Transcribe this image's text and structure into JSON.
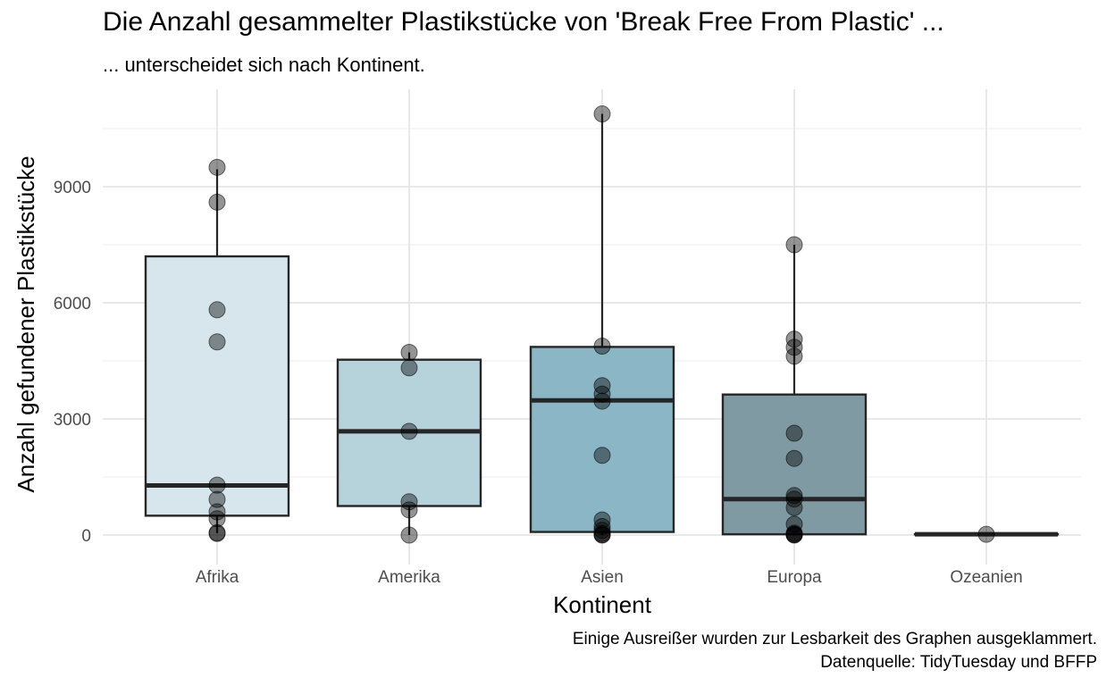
{
  "chart_data": {
    "type": "boxplot",
    "title": "Die Anzahl gesammelter Plastikstücke von 'Break Free From Plastic' ...",
    "subtitle": "... unterscheidet sich nach Kontinent.",
    "xlabel": "Kontinent",
    "ylabel": "Anzahl gefundener Plastikstücke",
    "caption": [
      "Einige Ausreißer wurden zur Lesbarkeit des Graphen ausgeklammert.",
      "Datenquelle: TidyTuesday und BFFP"
    ],
    "ylim": [
      -250,
      11250
    ],
    "yticks": [
      0,
      3000,
      6000,
      9000
    ],
    "grid": true,
    "categories": [
      "Afrika",
      "Amerika",
      "Asien",
      "Europa",
      "Ozeanien"
    ],
    "boxes": [
      {
        "category": "Afrika",
        "whisker_low": 50,
        "q1": 500,
        "median": 1280,
        "q3": 7200,
        "whisker_high": 9450,
        "color": "#d6e6ec"
      },
      {
        "category": "Amerika",
        "whisker_low": 0,
        "q1": 750,
        "median": 2680,
        "q3": 4530,
        "whisker_high": 4720,
        "color": "#b6d3dc"
      },
      {
        "category": "Asien",
        "whisker_low": 0,
        "q1": 80,
        "median": 3480,
        "q3": 4860,
        "whisker_high": 10880,
        "color": "#8ab6c6"
      },
      {
        "category": "Europa",
        "whisker_low": 0,
        "q1": 20,
        "median": 930,
        "q3": 3630,
        "whisker_high": 7500,
        "color": "#809aa3"
      },
      {
        "category": "Ozeanien",
        "whisker_low": 20,
        "q1": 20,
        "median": 20,
        "q3": 20,
        "whisker_high": 20,
        "color": "#9dbfca"
      }
    ],
    "points": [
      {
        "category": "Afrika",
        "values": [
          9500,
          8600,
          5820,
          4990,
          1290,
          920,
          600,
          420,
          60,
          40
        ]
      },
      {
        "category": "Amerika",
        "values": [
          4720,
          4320,
          2680,
          860,
          650,
          0
        ]
      },
      {
        "category": "Asien",
        "values": [
          10880,
          4880,
          3860,
          3640,
          3460,
          2060,
          390,
          220,
          120,
          40,
          10,
          0
        ]
      },
      {
        "category": "Europa",
        "values": [
          7500,
          5060,
          4850,
          4620,
          2630,
          1980,
          1020,
          930,
          710,
          280,
          50,
          20,
          10,
          0
        ]
      },
      {
        "category": "Ozeanien",
        "values": [
          20
        ]
      }
    ]
  }
}
